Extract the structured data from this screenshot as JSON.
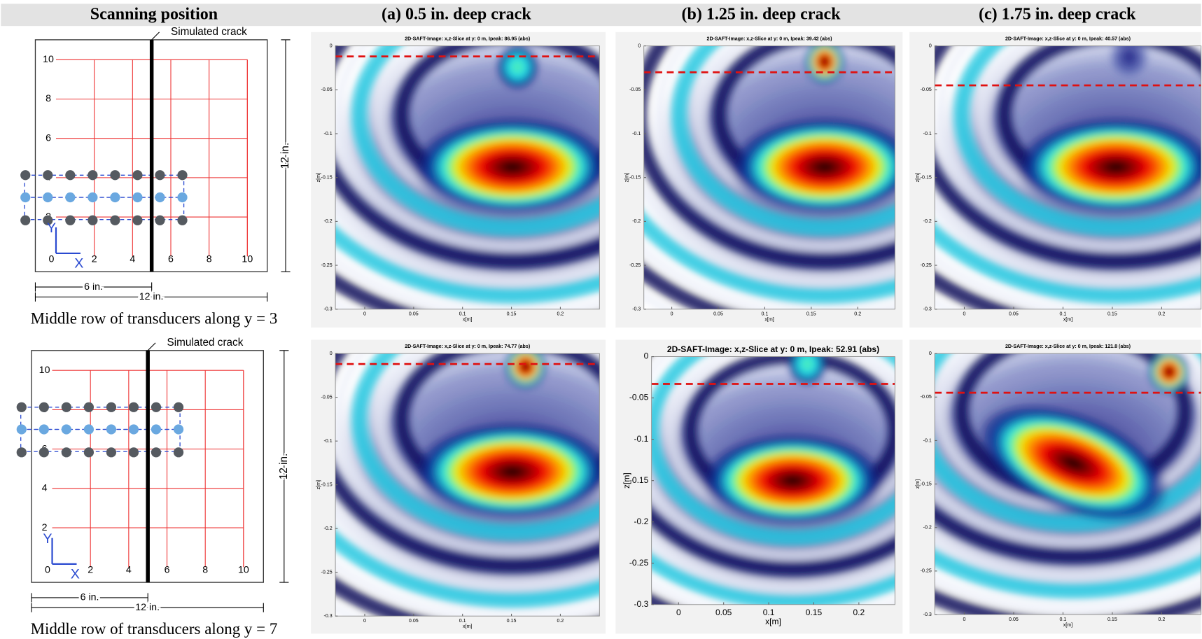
{
  "header": {
    "columns": [
      "Scanning position",
      "(a) 0.5 in. deep crack",
      "(b) 1.25 in. deep crack",
      "(c) 1.75 in. deep crack"
    ]
  },
  "diagram": {
    "crack_label": "Simulated crack",
    "x_labels": [
      0,
      2,
      4,
      6,
      8,
      10
    ],
    "y_labels": [
      2,
      4,
      6,
      8,
      10
    ],
    "x_axis": "X",
    "y_axis": "Y",
    "height_dim": "12 in.",
    "half_width_dim": "6 in.",
    "width_dim": "12 in."
  },
  "image_axes": {
    "xlabel": "x[m]",
    "ylabel": "z[m]",
    "xlim": [
      -0.03,
      0.24
    ],
    "ylim": [
      -0.3,
      0
    ],
    "xticks": [
      0,
      0.05,
      0.1,
      0.15,
      0.2
    ],
    "yticks": [
      0,
      -0.05,
      -0.1,
      -0.15,
      -0.2,
      -0.25,
      -0.3
    ]
  },
  "rows": [
    {
      "caption": "Middle row of transducers along y = 3",
      "images": [
        {
          "title": "2D-SAFT-Image: x,z-Slice at y: 0 m, Ipeak: 86.95 (abs)"
        },
        {
          "title": "2D-SAFT-Image: x,z-Slice at y: 0 m, Ipeak: 39.42 (abs)"
        },
        {
          "title": "2D-SAFT-Image: x,z-Slice at y: 0 m, Ipeak: 40.57 (abs)"
        }
      ]
    },
    {
      "caption": "Middle row of transducers along y = 7",
      "images": [
        {
          "title": "2D-SAFT-Image: x,z-Slice at y: 0 m, Ipeak: 74.77 (abs)"
        },
        {
          "title": "2D-SAFT-Image: x,z-Slice at y: 0 m, Ipeak: 52.91 (abs)"
        },
        {
          "title": "2D-SAFT-Image: x,z-Slice at y: 0 m, Ipeak: 121.8 (abs)"
        }
      ]
    }
  ]
}
